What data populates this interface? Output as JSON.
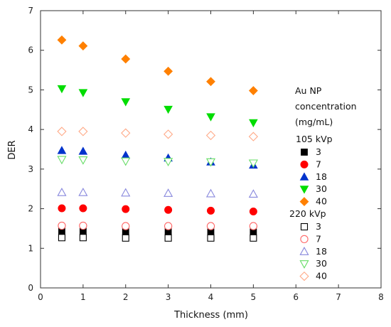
{
  "chart_data": {
    "type": "scatter",
    "xlabel": "Thickness (mm)",
    "ylabel": "DER",
    "xlim": [
      0,
      8
    ],
    "ylim": [
      0,
      7
    ],
    "xticks": [
      "0",
      "1",
      "2",
      "3",
      "4",
      "5",
      "6",
      "7",
      "8"
    ],
    "yticks": [
      "0",
      "1",
      "2",
      "3",
      "4",
      "5",
      "6",
      "7"
    ],
    "grid": false,
    "legend_position": "right",
    "legend_title": [
      "Au NP",
      "concentration",
      "(mg/mL)"
    ],
    "x": [
      0.5,
      1,
      2,
      3,
      4,
      5
    ],
    "groups": [
      {
        "label": "105 kVp",
        "series": [
          {
            "name": "3",
            "marker": "square",
            "filled": true,
            "color": "#000000",
            "values": [
              1.44,
              1.43,
              1.42,
              1.42,
              1.41,
              1.41
            ]
          },
          {
            "name": "7",
            "marker": "circle",
            "filled": true,
            "color": "#ff0000",
            "values": [
              2.01,
              2.01,
              1.99,
              1.97,
              1.95,
              1.93
            ]
          },
          {
            "name": "18",
            "marker": "triangle",
            "filled": true,
            "color": "#0033cc",
            "values": [
              3.47,
              3.45,
              3.35,
              3.28,
              3.18,
              3.1
            ]
          },
          {
            "name": "30",
            "marker": "triangle-down",
            "filled": true,
            "color": "#00dd00",
            "values": [
              5.03,
              4.93,
              4.7,
              4.51,
              4.32,
              4.17
            ]
          },
          {
            "name": "40",
            "marker": "diamond",
            "filled": true,
            "color": "#ff8000",
            "values": [
              6.26,
              6.11,
              5.78,
              5.47,
              5.21,
              4.98
            ]
          }
        ]
      },
      {
        "label": "220 kVp",
        "series": [
          {
            "name": "3",
            "marker": "square",
            "filled": false,
            "color": "#000000",
            "values": [
              1.27,
              1.27,
              1.26,
              1.26,
              1.26,
              1.26
            ]
          },
          {
            "name": "7",
            "marker": "circle",
            "filled": false,
            "color": "#ff6666",
            "values": [
              1.57,
              1.57,
              1.56,
              1.56,
              1.56,
              1.56
            ]
          },
          {
            "name": "18",
            "marker": "triangle",
            "filled": false,
            "color": "#8888dd",
            "values": [
              2.41,
              2.41,
              2.4,
              2.39,
              2.38,
              2.37
            ]
          },
          {
            "name": "30",
            "marker": "triangle-down",
            "filled": false,
            "color": "#66dd66",
            "values": [
              3.24,
              3.23,
              3.2,
              3.19,
              3.18,
              3.15
            ]
          },
          {
            "name": "40",
            "marker": "diamond",
            "filled": false,
            "color": "#ffaa88",
            "values": [
              3.95,
              3.95,
              3.91,
              3.88,
              3.85,
              3.82
            ]
          }
        ]
      }
    ]
  }
}
